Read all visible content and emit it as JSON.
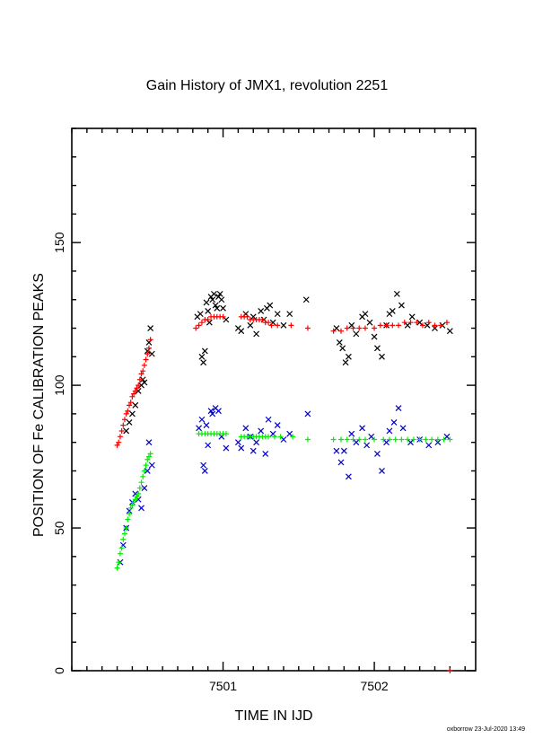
{
  "chart_data": {
    "type": "scatter",
    "title": "Gain History of JMX1, revolution 2251",
    "xlabel": "TIME IN IJD",
    "ylabel": "POSITION OF Fe CALIBRATION PEAKS",
    "xlim": [
      7500.0,
      7502.67
    ],
    "ylim": [
      0,
      190
    ],
    "x_ticks": [
      {
        "value": 7501,
        "label": "7501"
      },
      {
        "value": 7502,
        "label": "7502"
      }
    ],
    "y_ticks": [
      {
        "value": 0,
        "label": "0"
      },
      {
        "value": 50,
        "label": "50"
      },
      {
        "value": 100,
        "label": "100"
      },
      {
        "value": 150,
        "label": "150"
      }
    ],
    "x_minor_step": 0.1,
    "y_minor_step": 10,
    "grid": false,
    "series": [
      {
        "marker": "x",
        "color": "#000000",
        "points": [
          [
            7500.36,
            84
          ],
          [
            7500.38,
            87
          ],
          [
            7500.4,
            90
          ],
          [
            7500.42,
            93
          ],
          [
            7500.44,
            98
          ],
          [
            7500.46,
            100
          ],
          [
            7500.47,
            102
          ],
          [
            7500.48,
            101
          ],
          [
            7500.5,
            112
          ],
          [
            7500.51,
            115
          ],
          [
            7500.52,
            120
          ],
          [
            7500.53,
            111
          ],
          [
            7500.83,
            124
          ],
          [
            7500.85,
            125
          ],
          [
            7500.86,
            110
          ],
          [
            7500.87,
            108
          ],
          [
            7500.88,
            112
          ],
          [
            7500.89,
            129
          ],
          [
            7500.9,
            126
          ],
          [
            7500.91,
            122
          ],
          [
            7500.92,
            131
          ],
          [
            7500.93,
            130
          ],
          [
            7500.94,
            132
          ],
          [
            7500.95,
            128
          ],
          [
            7500.96,
            127
          ],
          [
            7500.97,
            131
          ],
          [
            7500.98,
            132
          ],
          [
            7500.99,
            130
          ],
          [
            7501.0,
            127
          ],
          [
            7501.02,
            123
          ],
          [
            7501.1,
            120
          ],
          [
            7501.12,
            119
          ],
          [
            7501.15,
            125
          ],
          [
            7501.18,
            121
          ],
          [
            7501.2,
            124
          ],
          [
            7501.22,
            118
          ],
          [
            7501.25,
            126
          ],
          [
            7501.27,
            123
          ],
          [
            7501.29,
            127
          ],
          [
            7501.31,
            128
          ],
          [
            7501.33,
            122
          ],
          [
            7501.36,
            125
          ],
          [
            7501.4,
            121
          ],
          [
            7501.44,
            125
          ],
          [
            7501.55,
            130
          ],
          [
            7501.75,
            120
          ],
          [
            7501.77,
            115
          ],
          [
            7501.79,
            113
          ],
          [
            7501.81,
            108
          ],
          [
            7501.83,
            110
          ],
          [
            7501.85,
            121
          ],
          [
            7501.88,
            118
          ],
          [
            7501.92,
            124
          ],
          [
            7501.94,
            125
          ],
          [
            7501.97,
            122
          ],
          [
            7502.0,
            117
          ],
          [
            7502.02,
            113
          ],
          [
            7502.05,
            110
          ],
          [
            7502.08,
            121
          ],
          [
            7502.1,
            125
          ],
          [
            7502.12,
            126
          ],
          [
            7502.15,
            132
          ],
          [
            7502.18,
            128
          ],
          [
            7502.22,
            121
          ],
          [
            7502.25,
            124
          ],
          [
            7502.3,
            122
          ],
          [
            7502.35,
            121
          ],
          [
            7502.4,
            120
          ],
          [
            7502.45,
            121
          ],
          [
            7502.5,
            119
          ]
        ]
      },
      {
        "marker": "+",
        "color": "#ff0000",
        "points": [
          [
            7500.3,
            79
          ],
          [
            7500.31,
            80
          ],
          [
            7500.32,
            82
          ],
          [
            7500.33,
            84
          ],
          [
            7500.34,
            86
          ],
          [
            7500.35,
            88
          ],
          [
            7500.36,
            90
          ],
          [
            7500.37,
            91
          ],
          [
            7500.38,
            93
          ],
          [
            7500.39,
            94
          ],
          [
            7500.4,
            96
          ],
          [
            7500.41,
            97
          ],
          [
            7500.42,
            98
          ],
          [
            7500.43,
            99
          ],
          [
            7500.44,
            100
          ],
          [
            7500.45,
            102
          ],
          [
            7500.46,
            104
          ],
          [
            7500.47,
            105
          ],
          [
            7500.48,
            107
          ],
          [
            7500.49,
            109
          ],
          [
            7500.5,
            111
          ],
          [
            7500.51,
            113
          ],
          [
            7500.52,
            116
          ],
          [
            7500.82,
            120
          ],
          [
            7500.84,
            121
          ],
          [
            7500.86,
            122
          ],
          [
            7500.88,
            123
          ],
          [
            7500.9,
            123
          ],
          [
            7500.92,
            124
          ],
          [
            7500.94,
            124
          ],
          [
            7500.96,
            124
          ],
          [
            7500.98,
            124
          ],
          [
            7501.0,
            124
          ],
          [
            7501.12,
            124
          ],
          [
            7501.14,
            124
          ],
          [
            7501.16,
            124
          ],
          [
            7501.18,
            123
          ],
          [
            7501.2,
            123
          ],
          [
            7501.22,
            123
          ],
          [
            7501.24,
            123
          ],
          [
            7501.26,
            123
          ],
          [
            7501.28,
            122
          ],
          [
            7501.3,
            122
          ],
          [
            7501.32,
            121
          ],
          [
            7501.36,
            121
          ],
          [
            7501.45,
            121
          ],
          [
            7501.56,
            120
          ],
          [
            7501.73,
            119
          ],
          [
            7501.78,
            119
          ],
          [
            7501.82,
            120
          ],
          [
            7501.86,
            120
          ],
          [
            7501.9,
            120
          ],
          [
            7501.94,
            120
          ],
          [
            7502.0,
            120
          ],
          [
            7502.04,
            121
          ],
          [
            7502.08,
            121
          ],
          [
            7502.12,
            121
          ],
          [
            7502.16,
            121
          ],
          [
            7502.2,
            122
          ],
          [
            7502.24,
            122
          ],
          [
            7502.28,
            122
          ],
          [
            7502.32,
            121
          ],
          [
            7502.36,
            122
          ],
          [
            7502.4,
            121
          ],
          [
            7502.44,
            121
          ],
          [
            7502.48,
            122
          ],
          [
            7502.5,
            0
          ]
        ]
      },
      {
        "marker": "x",
        "color": "#0000cc",
        "points": [
          [
            7500.32,
            38
          ],
          [
            7500.34,
            44
          ],
          [
            7500.36,
            50
          ],
          [
            7500.38,
            56
          ],
          [
            7500.4,
            59
          ],
          [
            7500.42,
            62
          ],
          [
            7500.44,
            60
          ],
          [
            7500.46,
            57
          ],
          [
            7500.48,
            64
          ],
          [
            7500.5,
            70
          ],
          [
            7500.51,
            80
          ],
          [
            7500.53,
            72
          ],
          [
            7500.84,
            85
          ],
          [
            7500.86,
            88
          ],
          [
            7500.87,
            72
          ],
          [
            7500.88,
            70
          ],
          [
            7500.89,
            86
          ],
          [
            7500.9,
            79
          ],
          [
            7500.92,
            91
          ],
          [
            7500.93,
            90
          ],
          [
            7500.95,
            92
          ],
          [
            7500.97,
            91
          ],
          [
            7500.99,
            82
          ],
          [
            7501.02,
            78
          ],
          [
            7501.1,
            80
          ],
          [
            7501.12,
            78
          ],
          [
            7501.15,
            85
          ],
          [
            7501.18,
            82
          ],
          [
            7501.2,
            77
          ],
          [
            7501.22,
            80
          ],
          [
            7501.25,
            84
          ],
          [
            7501.28,
            76
          ],
          [
            7501.3,
            88
          ],
          [
            7501.33,
            83
          ],
          [
            7501.36,
            86
          ],
          [
            7501.4,
            81
          ],
          [
            7501.44,
            83
          ],
          [
            7501.56,
            90
          ],
          [
            7501.75,
            77
          ],
          [
            7501.78,
            73
          ],
          [
            7501.8,
            77
          ],
          [
            7501.83,
            68
          ],
          [
            7501.85,
            83
          ],
          [
            7501.88,
            80
          ],
          [
            7501.92,
            85
          ],
          [
            7501.95,
            79
          ],
          [
            7501.98,
            82
          ],
          [
            7502.02,
            76
          ],
          [
            7502.05,
            70
          ],
          [
            7502.08,
            80
          ],
          [
            7502.1,
            84
          ],
          [
            7502.13,
            87
          ],
          [
            7502.16,
            92
          ],
          [
            7502.19,
            85
          ],
          [
            7502.24,
            80
          ],
          [
            7502.3,
            81
          ],
          [
            7502.36,
            79
          ],
          [
            7502.42,
            80
          ],
          [
            7502.48,
            82
          ]
        ]
      },
      {
        "marker": "+",
        "color": "#00ee00",
        "points": [
          [
            7500.3,
            36
          ],
          [
            7500.31,
            38
          ],
          [
            7500.32,
            41
          ],
          [
            7500.33,
            43
          ],
          [
            7500.34,
            46
          ],
          [
            7500.35,
            48
          ],
          [
            7500.36,
            50
          ],
          [
            7500.37,
            53
          ],
          [
            7500.38,
            55
          ],
          [
            7500.39,
            57
          ],
          [
            7500.4,
            58
          ],
          [
            7500.41,
            59
          ],
          [
            7500.42,
            60
          ],
          [
            7500.43,
            61
          ],
          [
            7500.44,
            62
          ],
          [
            7500.45,
            64
          ],
          [
            7500.46,
            66
          ],
          [
            7500.47,
            68
          ],
          [
            7500.48,
            70
          ],
          [
            7500.49,
            72
          ],
          [
            7500.5,
            74
          ],
          [
            7500.51,
            75
          ],
          [
            7500.52,
            76
          ],
          [
            7500.84,
            83
          ],
          [
            7500.86,
            83
          ],
          [
            7500.88,
            83
          ],
          [
            7500.9,
            83
          ],
          [
            7500.92,
            83
          ],
          [
            7500.94,
            83
          ],
          [
            7500.96,
            83
          ],
          [
            7500.98,
            83
          ],
          [
            7501.0,
            83
          ],
          [
            7501.02,
            83
          ],
          [
            7501.12,
            82
          ],
          [
            7501.14,
            82
          ],
          [
            7501.16,
            82
          ],
          [
            7501.18,
            82
          ],
          [
            7501.2,
            82
          ],
          [
            7501.22,
            82
          ],
          [
            7501.24,
            82
          ],
          [
            7501.26,
            82
          ],
          [
            7501.28,
            82
          ],
          [
            7501.3,
            82
          ],
          [
            7501.34,
            82
          ],
          [
            7501.38,
            82
          ],
          [
            7501.46,
            82
          ],
          [
            7501.56,
            81
          ],
          [
            7501.73,
            81
          ],
          [
            7501.78,
            81
          ],
          [
            7501.82,
            81
          ],
          [
            7501.86,
            81
          ],
          [
            7501.9,
            81
          ],
          [
            7501.94,
            81
          ],
          [
            7502.0,
            81
          ],
          [
            7502.06,
            81
          ],
          [
            7502.1,
            81
          ],
          [
            7502.14,
            81
          ],
          [
            7502.18,
            81
          ],
          [
            7502.22,
            81
          ],
          [
            7502.26,
            81
          ],
          [
            7502.3,
            81
          ],
          [
            7502.34,
            81
          ],
          [
            7502.38,
            81
          ],
          [
            7502.42,
            81
          ],
          [
            7502.46,
            81
          ],
          [
            7502.5,
            81
          ]
        ]
      }
    ]
  },
  "footer": "oxborrow 23-Jul-2020 13:49"
}
